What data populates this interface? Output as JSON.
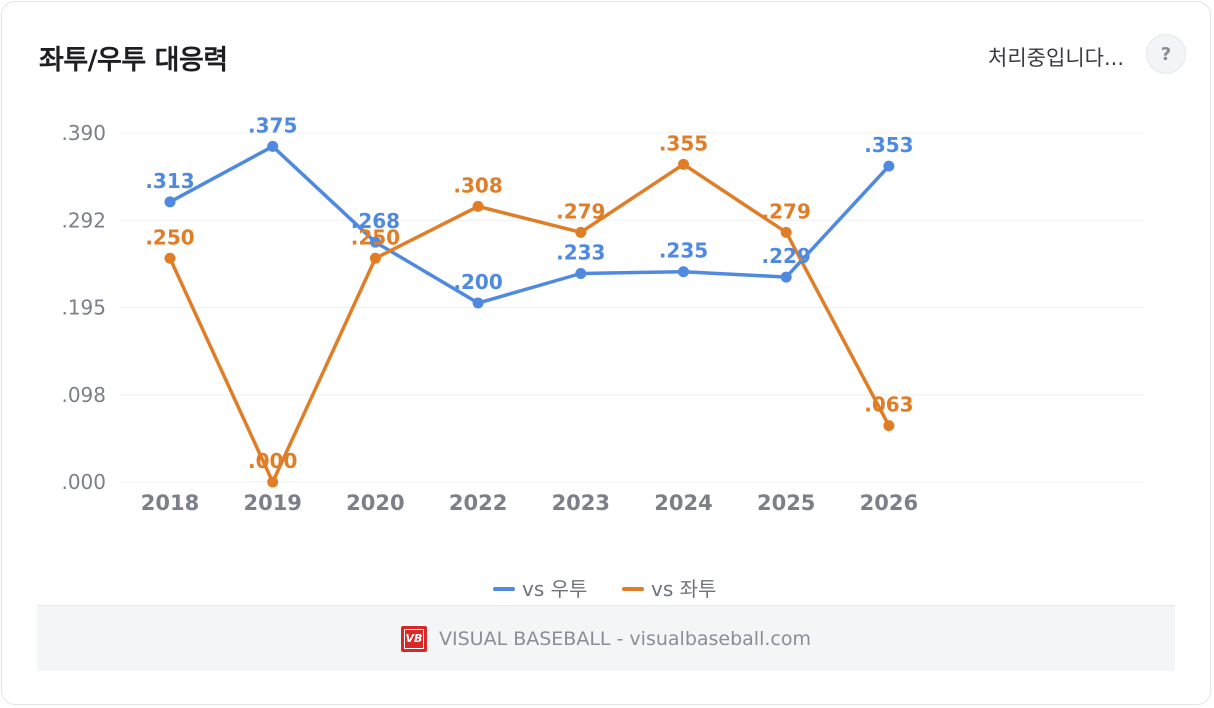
{
  "header": {
    "title": "좌투/우투 대응력",
    "status_text": "처리중입니다...",
    "help_label": "?"
  },
  "chart_data": {
    "type": "line",
    "title": "좌투/우투 대응력",
    "categories": [
      "2018",
      "2019",
      "2020",
      "2022",
      "2023",
      "2024",
      "2025",
      "2026"
    ],
    "yticks": [
      ".000",
      ".098",
      ".195",
      ".292",
      ".390"
    ],
    "ylim": [
      0,
      0.39
    ],
    "grid": true,
    "legend_position": "bottom-center",
    "series": [
      {
        "name": "vs 우투",
        "color": "#4f8ae0",
        "values": [
          0.313,
          0.375,
          0.268,
          0.2,
          0.233,
          0.235,
          0.229,
          0.353
        ],
        "labels": [
          ".313",
          ".375",
          ".268",
          ".200",
          ".233",
          ".235",
          ".229",
          ".353"
        ]
      },
      {
        "name": "vs 좌투",
        "color": "#e07e28",
        "values": [
          0.25,
          0.0,
          0.25,
          0.308,
          0.279,
          0.355,
          0.279,
          0.063
        ],
        "labels": [
          ".250",
          ".000",
          ".250",
          ".308",
          ".279",
          ".355",
          ".279",
          ".063"
        ]
      }
    ]
  },
  "footer": {
    "logo_text": "VB",
    "text": "VISUAL BASEBALL - visualbaseball.com"
  }
}
